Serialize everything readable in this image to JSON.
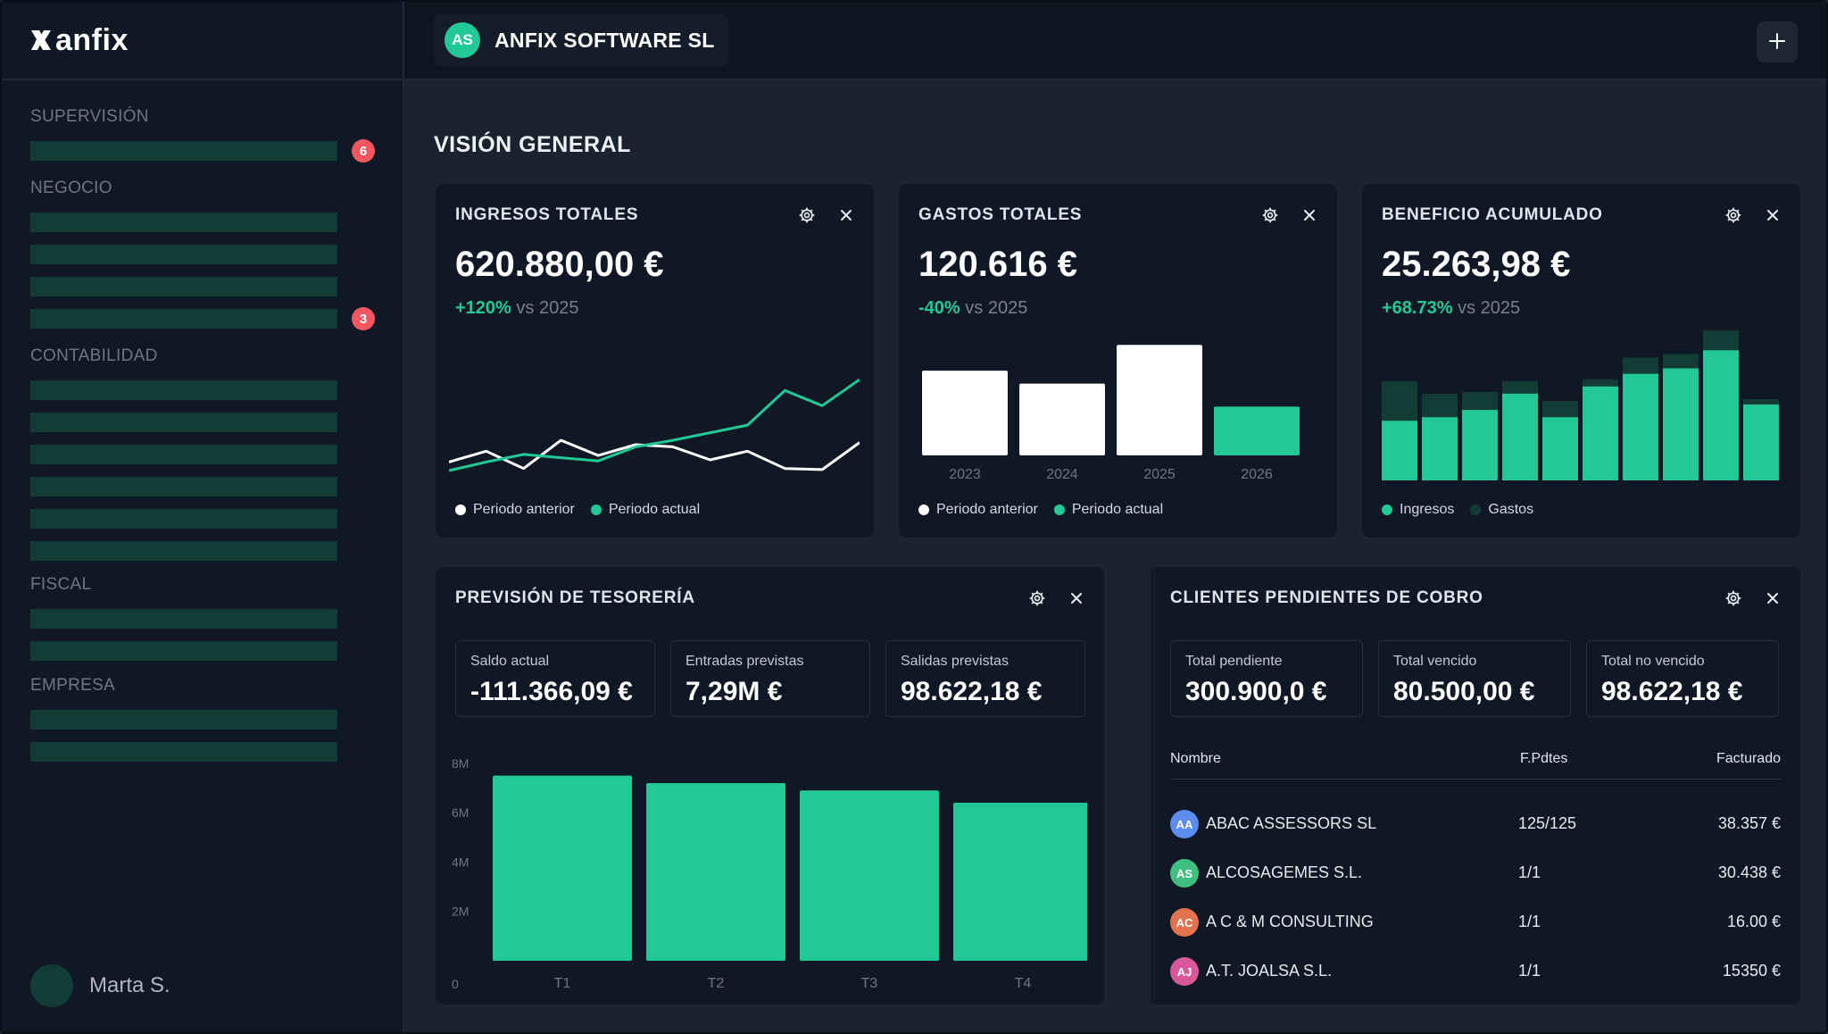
{
  "app": {
    "logo_text": "anfix",
    "company": {
      "initials": "AS",
      "name": "ANFIX SOFTWARE SL"
    },
    "add_icon": "plus-icon"
  },
  "sidebar": {
    "sections": [
      {
        "title": "SUPERVISIÓN",
        "items": 1,
        "badges": [
          {
            "item": 0,
            "count": "6"
          }
        ]
      },
      {
        "title": "NEGOCIO",
        "items": 4,
        "badges": [
          {
            "item": 3,
            "count": "3"
          }
        ]
      },
      {
        "title": "CONTABILIDAD",
        "items": 6,
        "badges": []
      },
      {
        "title": "FISCAL",
        "items": 2,
        "badges": []
      },
      {
        "title": "EMPRESA",
        "items": 2,
        "badges": []
      }
    ],
    "user": {
      "name": "Marta S."
    }
  },
  "page": {
    "title": "VISIÓN GENERAL"
  },
  "colors": {
    "accent": "#22c997",
    "accent_dark": "#123c35",
    "white": "#ffffff",
    "badge": "#f2565f"
  },
  "cards": {
    "ingresos": {
      "title": "INGRESOS TOTALES",
      "value": "620.880,00 €",
      "delta_pct": "+120%",
      "delta_text": "vs 2025",
      "legend": [
        "Periodo anterior",
        "Periodo actual"
      ]
    },
    "gastos": {
      "title": "GASTOS TOTALES",
      "value": "120.616 €",
      "delta_pct": "-40%",
      "delta_text": "vs 2025",
      "legend": [
        "Periodo anterior",
        "Periodo actual"
      ]
    },
    "beneficio": {
      "title": "BENEFICIO ACUMULADO",
      "value": "25.263,98 €",
      "delta_pct": "+68.73%",
      "delta_text": "vs 2025",
      "legend": [
        "Ingresos",
        "Gastos"
      ]
    },
    "tesoreria": {
      "title": "PREVISIÓN DE TESORERÍA",
      "kpis": [
        {
          "label": "Saldo actual",
          "value": "-111.366,09 €"
        },
        {
          "label": "Entradas previstas",
          "value": "7,29M €"
        },
        {
          "label": "Salidas previstas",
          "value": "98.622,18 €"
        }
      ]
    },
    "clientes": {
      "title": "CLIENTES PENDIENTES DE COBRO",
      "kpis": [
        {
          "label": "Total pendiente",
          "value": "300.900,0 €"
        },
        {
          "label": "Total vencido",
          "value": "80.500,00 €"
        },
        {
          "label": "Total no vencido",
          "value": "98.622,18 €"
        }
      ],
      "columns": [
        "Nombre",
        "F.Pdtes",
        "Facturado"
      ],
      "rows": [
        {
          "initials": "AA",
          "color": "#5b8def",
          "name": "ABAC ASSESSORS SL",
          "pending": "125/125",
          "billed": "38.357 €"
        },
        {
          "initials": "AS",
          "color": "#3fbf7f",
          "name": "ALCOSAGEMES S.L.",
          "pending": "1/1",
          "billed": "30.438 €"
        },
        {
          "initials": "AC",
          "color": "#e0724f",
          "name": "A C & M CONSULTING",
          "pending": "1/1",
          "billed": "16.00 €"
        },
        {
          "initials": "AJ",
          "color": "#d9579b",
          "name": "A.T. JOALSA S.L.",
          "pending": "1/1",
          "billed": "15350 €"
        }
      ]
    }
  },
  "chart_data": [
    {
      "type": "line",
      "series": [
        {
          "name": "Periodo anterior",
          "values": [
            4,
            5,
            3.4,
            6,
            4.6,
            5.6,
            5.4,
            4.2,
            5,
            3.4,
            3.3,
            5.8
          ]
        },
        {
          "name": "Periodo actual",
          "values": [
            3.2,
            4,
            4.7,
            4.4,
            4.1,
            5.4,
            6,
            6.7,
            7.4,
            10.6,
            9.2,
            11.6
          ]
        }
      ],
      "ylim": [
        0,
        14
      ]
    },
    {
      "type": "bar",
      "categories": [
        "2023",
        "2024",
        "2025",
        "2026"
      ],
      "values": [
        92,
        78,
        120,
        53
      ],
      "ylim": [
        0,
        130
      ]
    },
    {
      "type": "bar",
      "stacked": true,
      "series": [
        {
          "name": "Ingresos",
          "values": [
            66,
            70,
            78,
            96,
            70,
            104,
            118,
            124,
            144,
            84
          ]
        },
        {
          "name": "Gastos",
          "values": [
            44,
            26,
            20,
            14,
            18,
            8,
            18,
            16,
            22,
            6
          ]
        }
      ],
      "ylim": [
        0,
        170
      ]
    },
    {
      "type": "bar",
      "categories": [
        "T1",
        "T2",
        "T3",
        "T4"
      ],
      "values": [
        7.5,
        7.2,
        6.9,
        6.4
      ],
      "ytick_labels": [
        "0",
        "2M",
        "4M",
        "6M",
        "8M"
      ],
      "ylim": [
        0,
        8.5
      ]
    }
  ]
}
